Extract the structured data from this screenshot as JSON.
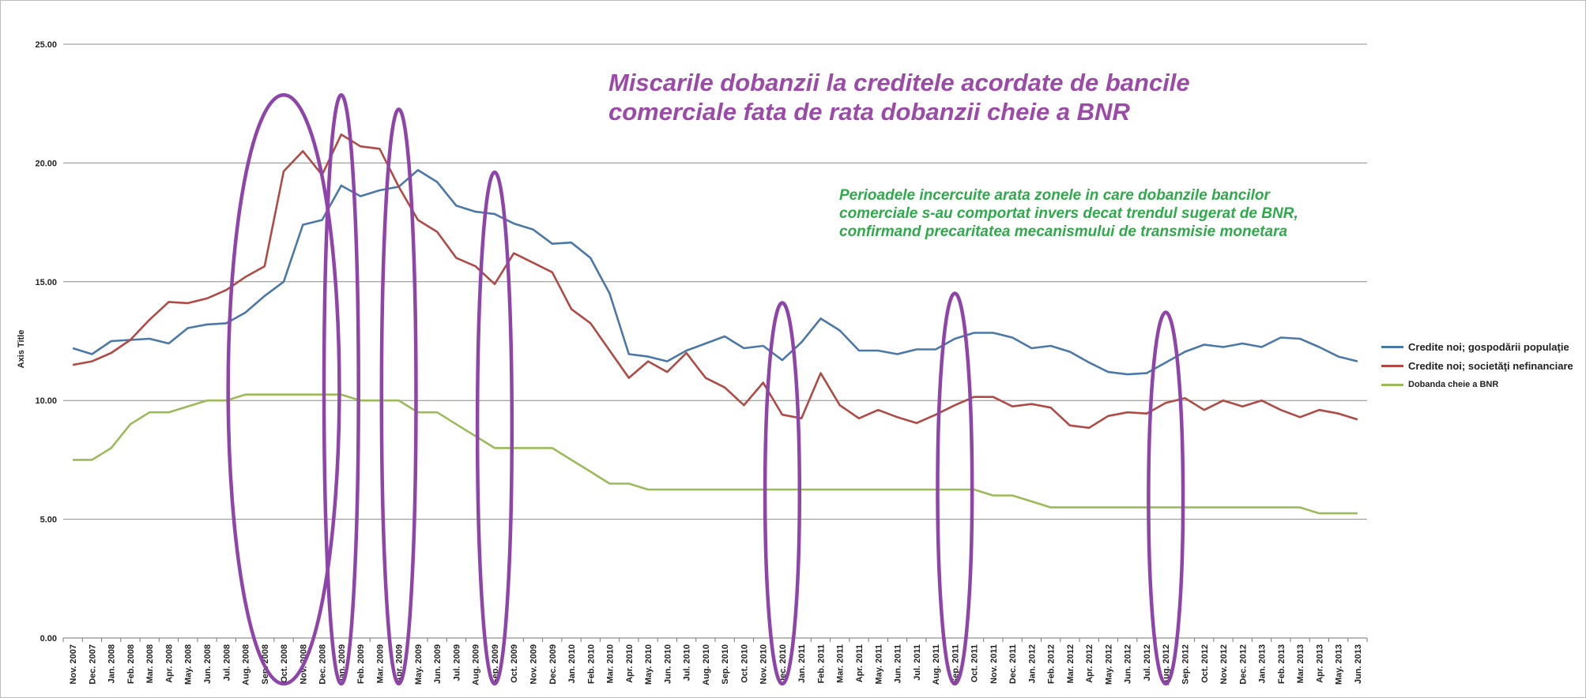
{
  "chart_data": {
    "type": "line",
    "title": "Miscarile dobanzii la creditele acordate de bancile\ncomerciale fata de rata dobanzii cheie a BNR",
    "annotation": "Perioadele incercuite arata zonele in care dobanzile bancilor comerciale s-au comportat invers decat trendul sugerat de BNR, confirmand precaritatea mecanismului de transmisie monetara",
    "ylabel": "Axis Title",
    "xlabel": "",
    "ylim": [
      0,
      25
    ],
    "yticks": [
      "0.00",
      "5.00",
      "10.00",
      "15.00",
      "20.00",
      "25.00"
    ],
    "grid": true,
    "legend_position": "right",
    "categories": [
      "Nov. 2007",
      "Dec. 2007",
      "Jan. 2008",
      "Feb. 2008",
      "Mar. 2008",
      "Apr. 2008",
      "May. 2008",
      "Jun. 2008",
      "Jul. 2008",
      "Aug. 2008",
      "Sep. 2008",
      "Oct. 2008",
      "Nov. 2008",
      "Dec. 2008",
      "Jan. 2009",
      "Feb. 2009",
      "Mar. 2009",
      "Apr. 2009",
      "May. 2009",
      "Jun. 2009",
      "Jul. 2009",
      "Aug. 2009",
      "Sep. 2009",
      "Oct. 2009",
      "Nov. 2009",
      "Dec. 2009",
      "Jan. 2010",
      "Feb. 2010",
      "Mar. 2010",
      "Apr. 2010",
      "May. 2010",
      "Jun. 2010",
      "Jul. 2010",
      "Aug. 2010",
      "Sep. 2010",
      "Oct. 2010",
      "Nov. 2010",
      "Dec. 2010",
      "Jan. 2011",
      "Feb. 2011",
      "Mar. 2011",
      "Apr. 2011",
      "May. 2011",
      "Jun. 2011",
      "Jul. 2011",
      "Aug. 2011",
      "Sep. 2011",
      "Oct. 2011",
      "Nov. 2011",
      "Dec. 2011",
      "Jan. 2012",
      "Feb. 2012",
      "Mar. 2012",
      "Apr. 2012",
      "May. 2012",
      "Jun. 2012",
      "Jul. 2012",
      "Aug. 2012",
      "Sep. 2012",
      "Oct. 2012",
      "Nov. 2012",
      "Dec. 2012",
      "Jan. 2013",
      "Feb. 2013",
      "Mar. 2013",
      "Apr. 2013",
      "May. 2013",
      "Jun. 2013"
    ],
    "series": [
      {
        "name": "Credite noi; gospodării populaţie",
        "color": "#4a78a8",
        "values": [
          12.2,
          11.95,
          12.5,
          12.55,
          12.6,
          12.4,
          13.05,
          13.2,
          13.25,
          13.7,
          14.4,
          15.0,
          17.4,
          17.6,
          19.05,
          18.6,
          18.85,
          19.0,
          19.7,
          19.2,
          18.2,
          17.95,
          17.85,
          17.45,
          17.2,
          16.6,
          16.65,
          16.0,
          14.5,
          11.95,
          11.85,
          11.65,
          12.1,
          12.4,
          12.7,
          12.2,
          12.3,
          11.7,
          12.45,
          13.45,
          12.95,
          12.1,
          12.1,
          11.95,
          12.15,
          12.15,
          12.6,
          12.85,
          12.85,
          12.65,
          12.2,
          12.3,
          12.05,
          11.6,
          11.2,
          11.1,
          11.15,
          11.6,
          12.05,
          12.35,
          12.25,
          12.4,
          12.25,
          12.65,
          12.6,
          12.25,
          11.85,
          11.65
        ]
      },
      {
        "name": "Credite noi; societăţi nefinanciare",
        "color": "#b04a45",
        "values": [
          11.5,
          11.65,
          12.0,
          12.55,
          13.4,
          14.15,
          14.1,
          14.3,
          14.65,
          15.2,
          15.65,
          19.65,
          20.5,
          19.5,
          21.2,
          20.7,
          20.6,
          19.0,
          17.6,
          17.1,
          16.0,
          15.65,
          14.9,
          16.2,
          15.8,
          15.4,
          13.85,
          13.25,
          12.1,
          10.95,
          11.65,
          11.2,
          12.0,
          10.95,
          10.55,
          9.8,
          10.75,
          9.4,
          9.25,
          11.15,
          9.8,
          9.25,
          9.6,
          9.3,
          9.05,
          9.4,
          9.8,
          10.15,
          10.15,
          9.75,
          9.85,
          9.7,
          8.95,
          8.85,
          9.35,
          9.5,
          9.45,
          9.9,
          10.1,
          9.6,
          10.0,
          9.75,
          10.0,
          9.6,
          9.3,
          9.6,
          9.45,
          9.2
        ]
      },
      {
        "name": "Dobanda cheie a BNR",
        "color": "#9bbb59",
        "values": [
          7.5,
          7.5,
          8.0,
          9.0,
          9.5,
          9.5,
          9.75,
          10.0,
          10.0,
          10.25,
          10.25,
          10.25,
          10.25,
          10.25,
          10.25,
          10.0,
          10.0,
          10.0,
          9.5,
          9.5,
          9.0,
          8.5,
          8.0,
          8.0,
          8.0,
          8.0,
          7.5,
          7.0,
          6.5,
          6.5,
          6.25,
          6.25,
          6.25,
          6.25,
          6.25,
          6.25,
          6.25,
          6.25,
          6.25,
          6.25,
          6.25,
          6.25,
          6.25,
          6.25,
          6.25,
          6.25,
          6.25,
          6.25,
          6.0,
          6.0,
          5.75,
          5.5,
          5.5,
          5.5,
          5.5,
          5.5,
          5.5,
          5.5,
          5.5,
          5.5,
          5.5,
          5.5,
          5.5,
          5.5,
          5.5,
          5.25,
          5.25,
          5.25
        ]
      }
    ],
    "highlight_ranges": [
      [
        "Aug. 2008",
        "Dec. 2008"
      ],
      [
        "Jan. 2009",
        "Jan. 2009"
      ],
      [
        "Apr. 2009",
        "Apr. 2009"
      ],
      [
        "Sep. 2009",
        "Sep. 2009"
      ],
      [
        "Dec. 2010",
        "Dec. 2010"
      ],
      [
        "Sep. 2011",
        "Sep. 2011"
      ],
      [
        "Aug. 2012",
        "Aug. 2012"
      ]
    ],
    "highlight_color": "#8e44a8"
  }
}
